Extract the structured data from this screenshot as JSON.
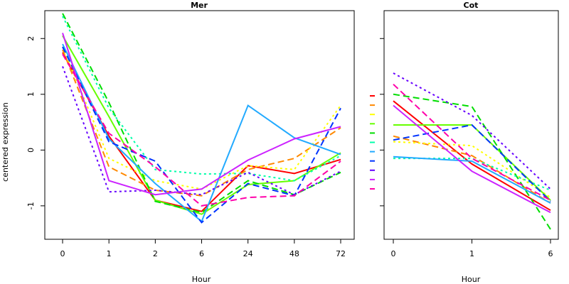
{
  "chart_data": [
    {
      "type": "line",
      "title": "Mer",
      "xlabel": "Hour",
      "ylabel": "centered expression",
      "x": [
        "0",
        "1",
        "2",
        "6",
        "24",
        "48",
        "72"
      ],
      "yticks": [
        "-1",
        "0",
        "1",
        "2"
      ],
      "ylim": [
        -1.6,
        2.5
      ],
      "grid": false,
      "series": [
        {
          "color": "#ff0000",
          "dash": "solid",
          "values": [
            1.75,
            0.25,
            -0.9,
            -1.1,
            -0.28,
            -0.42,
            -0.17
          ]
        },
        {
          "color": "#ff8800",
          "dash": "dashed",
          "values": [
            1.8,
            -0.3,
            -0.72,
            -0.82,
            -0.35,
            -0.15,
            0.4
          ]
        },
        {
          "color": "#ffff00",
          "dash": "dotted",
          "values": [
            1.85,
            -0.15,
            -0.55,
            -0.7,
            -0.28,
            -0.35,
            0.8
          ]
        },
        {
          "color": "#66ff00",
          "dash": "solid",
          "values": [
            2.05,
            0.6,
            -0.9,
            -1.15,
            -0.62,
            -0.55,
            -0.05
          ]
        },
        {
          "color": "#00dd00",
          "dash": "dashed",
          "values": [
            2.45,
            0.85,
            -0.92,
            -1.12,
            -0.55,
            -0.8,
            -0.4
          ]
        },
        {
          "color": "#00ffaa",
          "dash": "dotted",
          "values": [
            2.4,
            0.75,
            -0.35,
            -0.43,
            -0.42,
            -0.55,
            -0.1
          ]
        },
        {
          "color": "#22aaff",
          "dash": "solid",
          "values": [
            1.9,
            0.2,
            -0.6,
            -1.28,
            0.8,
            0.22,
            -0.08
          ]
        },
        {
          "color": "#0033ff",
          "dash": "dashed",
          "values": [
            1.85,
            0.15,
            -0.2,
            -1.3,
            -0.6,
            -0.82,
            0.75
          ]
        },
        {
          "color": "#6600ff",
          "dash": "dotted",
          "values": [
            1.5,
            -0.75,
            -0.72,
            -0.8,
            -0.4,
            -0.8,
            -0.38
          ]
        },
        {
          "color": "#cc22ff",
          "dash": "solid",
          "values": [
            2.1,
            -0.55,
            -0.8,
            -0.7,
            -0.18,
            0.2,
            0.42
          ]
        },
        {
          "color": "#ff00aa",
          "dash": "dashed",
          "values": [
            1.72,
            0.3,
            -0.3,
            -1.0,
            -0.85,
            -0.82,
            -0.2
          ]
        }
      ]
    },
    {
      "type": "line",
      "title": "Cot",
      "xlabel": "Hour",
      "ylabel": "",
      "x": [
        "0",
        "1",
        "6"
      ],
      "yticks": [],
      "ylim": [
        -1.6,
        2.5
      ],
      "grid": false,
      "series": [
        {
          "color": "#ff0000",
          "dash": "solid",
          "values": [
            0.88,
            -0.25,
            -1.08
          ]
        },
        {
          "color": "#ff8800",
          "dash": "dashed",
          "values": [
            0.25,
            -0.1,
            -0.95
          ]
        },
        {
          "color": "#ffff00",
          "dash": "dotted",
          "values": [
            0.15,
            0.08,
            -0.85
          ]
        },
        {
          "color": "#66ff00",
          "dash": "solid",
          "values": [
            0.45,
            0.45,
            -0.9
          ]
        },
        {
          "color": "#00dd00",
          "dash": "dashed",
          "values": [
            1.0,
            0.78,
            -1.42
          ]
        },
        {
          "color": "#00ffaa",
          "dash": "dotted",
          "values": [
            -0.15,
            -0.15,
            -0.72
          ]
        },
        {
          "color": "#22aaff",
          "dash": "solid",
          "values": [
            -0.12,
            -0.2,
            -0.95
          ]
        },
        {
          "color": "#0033ff",
          "dash": "dashed",
          "values": [
            0.18,
            0.45,
            -0.92
          ]
        },
        {
          "color": "#6600ff",
          "dash": "dotted",
          "values": [
            1.38,
            0.62,
            -0.7
          ]
        },
        {
          "color": "#cc22ff",
          "dash": "solid",
          "values": [
            0.8,
            -0.38,
            -1.12
          ]
        },
        {
          "color": "#ff00aa",
          "dash": "dashed",
          "values": [
            1.18,
            -0.15,
            -0.9
          ]
        }
      ]
    }
  ],
  "legend": {
    "placement": "between-panels",
    "entries": [
      {
        "color": "#ff0000"
      },
      {
        "color": "#ff8800"
      },
      {
        "color": "#ffff00"
      },
      {
        "color": "#66ff00"
      },
      {
        "color": "#00dd00"
      },
      {
        "color": "#00ffaa"
      },
      {
        "color": "#22aaff"
      },
      {
        "color": "#0033ff"
      },
      {
        "color": "#6600ff"
      },
      {
        "color": "#cc22ff"
      },
      {
        "color": "#ff00aa"
      }
    ]
  }
}
